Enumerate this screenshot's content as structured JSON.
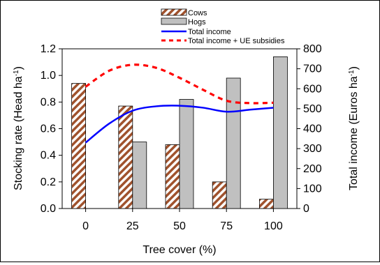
{
  "chart_data": {
    "type": "bar",
    "title": "",
    "categories": [
      "0",
      "25",
      "50",
      "75",
      "100"
    ],
    "xlabel": "Tree cover (%)",
    "ylabel_left": {
      "main": "Stocking rate (Head ha",
      "sup": "-1",
      "tail": ")"
    },
    "ylabel_right": {
      "main": "Total income (Euros ha",
      "sup": "-1",
      "tail": ")"
    },
    "ylim_left": [
      0,
      1.2
    ],
    "ylim_right": [
      0,
      800
    ],
    "yticks_left": [
      "0.0",
      "0.2",
      "0.4",
      "0.6",
      "0.8",
      "1.0",
      "1.2"
    ],
    "yticks_right": [
      "0",
      "100",
      "200",
      "300",
      "400",
      "500",
      "600",
      "700",
      "800"
    ],
    "grid": false,
    "legend_position": "top",
    "bars": [
      {
        "name": "Cows",
        "axis": "left",
        "values": [
          0.94,
          0.77,
          0.48,
          0.2,
          0.07
        ],
        "color": "#a0522d",
        "pattern": "hatch"
      },
      {
        "name": "Hogs",
        "axis": "left",
        "values": [
          null,
          0.5,
          0.82,
          0.98,
          1.14
        ],
        "color": "#c0c0c0",
        "pattern": "solid"
      }
    ],
    "lines": [
      {
        "name": "Total income",
        "axis": "right",
        "color": "#0000ff",
        "style": "solid",
        "x": [
          0,
          12.5,
          25,
          37.5,
          50,
          62.5,
          75,
          87.5,
          100
        ],
        "values": [
          330,
          425,
          490,
          512,
          515,
          505,
          485,
          495,
          505
        ]
      },
      {
        "name": "Total income + UE subsidies",
        "axis": "right",
        "color": "#ff0000",
        "style": "dashed",
        "x": [
          0,
          12.5,
          25,
          37.5,
          50,
          62.5,
          75,
          87.5,
          100
        ],
        "values": [
          610,
          690,
          720,
          705,
          655,
          595,
          540,
          528,
          530
        ]
      }
    ]
  }
}
